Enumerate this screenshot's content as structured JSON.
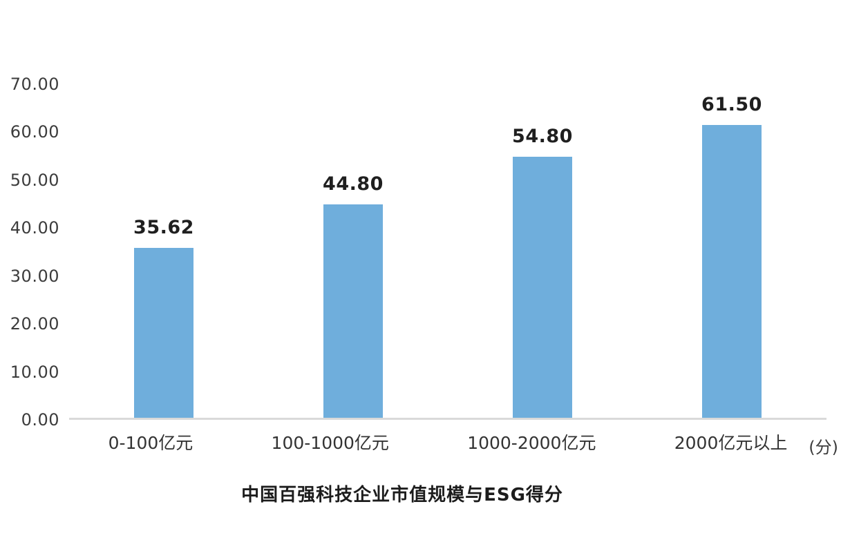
{
  "chart_data": {
    "type": "bar",
    "title": "中国百强科技企业市值规模与ESG得分",
    "unit_label": "(分)",
    "categories": [
      "0-100亿元",
      "100-1000亿元",
      "1000-2000亿元",
      "2000亿元以上"
    ],
    "values": [
      35.62,
      44.8,
      54.8,
      61.5
    ],
    "value_labels": [
      "35.62",
      "44.80",
      "54.80",
      "61.50"
    ],
    "ytick_labels": [
      "70.00",
      "60.00",
      "50.00",
      "40.00",
      "30.00",
      "20.00",
      "10.00",
      "0.00"
    ],
    "ytick_values": [
      70,
      60,
      50,
      40,
      30,
      20,
      10,
      0
    ],
    "ylim": [
      0,
      70
    ],
    "xlabel": "",
    "ylabel": "(分)",
    "grid": false,
    "legend_position": "none",
    "bar_color": "#6FAEDC",
    "axis_line_color": "#D9D9D9",
    "value_label_color": "#1F1F1F",
    "tick_label_color": "#3C3C3C"
  }
}
